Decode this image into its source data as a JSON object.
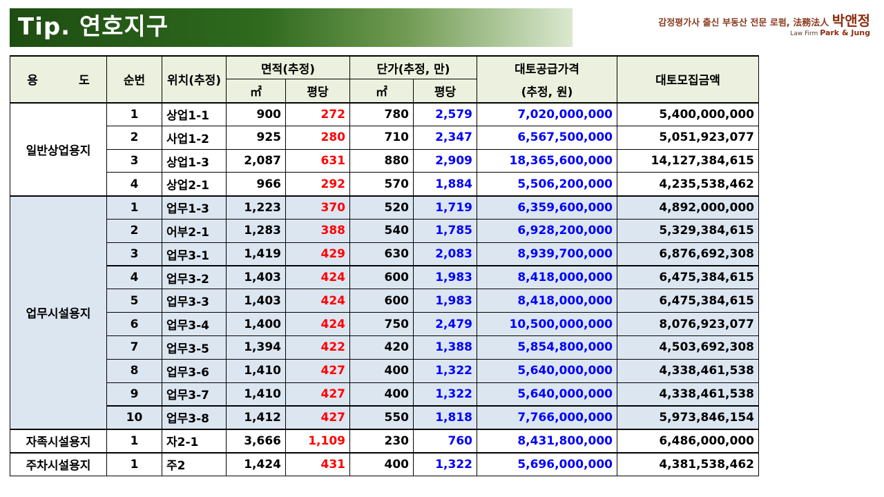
{
  "title": "Tip. 연호지구",
  "brand": {
    "line1": "감정평가사 출신 부동산 전문 로펌, 法務法人",
    "name": "박앤정",
    "line2_prefix": "Law Firm",
    "line2_name": "Park & Jung"
  },
  "table": {
    "headers": {
      "use": "용          도",
      "seq": "순번",
      "loc": "위치(추정)",
      "area": "면적(추정)",
      "area_m2": "㎡",
      "area_pyeong": "평당",
      "price": "단가(추정, 만)",
      "price_m2": "㎡",
      "price_pyeong": "평당",
      "supply": "대토공급가격",
      "supply_sub": "(추정, 원)",
      "raise": "대토모집금액"
    },
    "groups": [
      {
        "use": "일반상업용지",
        "style": "common",
        "rows": [
          {
            "seq": "1",
            "loc": "상업1-1",
            "m2": "900",
            "py": "272",
            "pm2": "780",
            "ppy": "2,579",
            "supply": "7,020,000,000",
            "raise": "5,400,000,000"
          },
          {
            "seq": "2",
            "loc": "사업1-2",
            "m2": "925",
            "py": "280",
            "pm2": "710",
            "ppy": "2,347",
            "supply": "6,567,500,000",
            "raise": "5,051,923,077"
          },
          {
            "seq": "3",
            "loc": "상업1-3",
            "m2": "2,087",
            "py": "631",
            "pm2": "880",
            "ppy": "2,909",
            "supply": "18,365,600,000",
            "raise": "14,127,384,615"
          },
          {
            "seq": "4",
            "loc": "상업2-1",
            "m2": "966",
            "py": "292",
            "pm2": "570",
            "ppy": "1,884",
            "supply": "5,506,200,000",
            "raise": "4,235,538,462"
          }
        ]
      },
      {
        "use": "업무시설용지",
        "style": "office",
        "rows": [
          {
            "seq": "1",
            "loc": "업무1-3",
            "m2": "1,223",
            "py": "370",
            "pm2": "520",
            "ppy": "1,719",
            "supply": "6,359,600,000",
            "raise": "4,892,000,000"
          },
          {
            "seq": "2",
            "loc": "어부2-1",
            "m2": "1,283",
            "py": "388",
            "pm2": "540",
            "ppy": "1,785",
            "supply": "6,928,200,000",
            "raise": "5,329,384,615"
          },
          {
            "seq": "3",
            "loc": "업무3-1",
            "m2": "1,419",
            "py": "429",
            "pm2": "630",
            "ppy": "2,083",
            "supply": "8,939,700,000",
            "raise": "6,876,692,308"
          },
          {
            "seq": "4",
            "loc": "업무3-2",
            "m2": "1,403",
            "py": "424",
            "pm2": "600",
            "ppy": "1,983",
            "supply": "8,418,000,000",
            "raise": "6,475,384,615"
          },
          {
            "seq": "5",
            "loc": "업무3-3",
            "m2": "1,403",
            "py": "424",
            "pm2": "600",
            "ppy": "1,983",
            "supply": "8,418,000,000",
            "raise": "6,475,384,615"
          },
          {
            "seq": "6",
            "loc": "업무3-4",
            "m2": "1,400",
            "py": "424",
            "pm2": "750",
            "ppy": "2,479",
            "supply": "10,500,000,000",
            "raise": "8,076,923,077"
          },
          {
            "seq": "7",
            "loc": "업무3-5",
            "m2": "1,394",
            "py": "422",
            "pm2": "420",
            "ppy": "1,388",
            "supply": "5,854,800,000",
            "raise": "4,503,692,308"
          },
          {
            "seq": "8",
            "loc": "업무3-6",
            "m2": "1,410",
            "py": "427",
            "pm2": "400",
            "ppy": "1,322",
            "supply": "5,640,000,000",
            "raise": "4,338,461,538"
          },
          {
            "seq": "9",
            "loc": "업무3-7",
            "m2": "1,410",
            "py": "427",
            "pm2": "400",
            "ppy": "1,322",
            "supply": "5,640,000,000",
            "raise": "4,338,461,538"
          },
          {
            "seq": "10",
            "loc": "업무3-8",
            "m2": "1,412",
            "py": "427",
            "pm2": "550",
            "ppy": "1,818",
            "supply": "7,766,000,000",
            "raise": "5,973,846,154"
          }
        ]
      },
      {
        "use": "자족시설용지",
        "style": "common",
        "rows": [
          {
            "seq": "1",
            "loc": "자2-1",
            "m2": "3,666",
            "py": "1,109",
            "pm2": "230",
            "ppy": "760",
            "supply": "8,431,800,000",
            "raise": "6,486,000,000"
          }
        ]
      },
      {
        "use": "주차시설용지",
        "style": "common",
        "rows": [
          {
            "seq": "1",
            "loc": "주2",
            "m2": "1,424",
            "py": "431",
            "pm2": "400",
            "ppy": "1,322",
            "supply": "5,696,000,000",
            "raise": "4,381,538,462"
          }
        ]
      }
    ]
  }
}
